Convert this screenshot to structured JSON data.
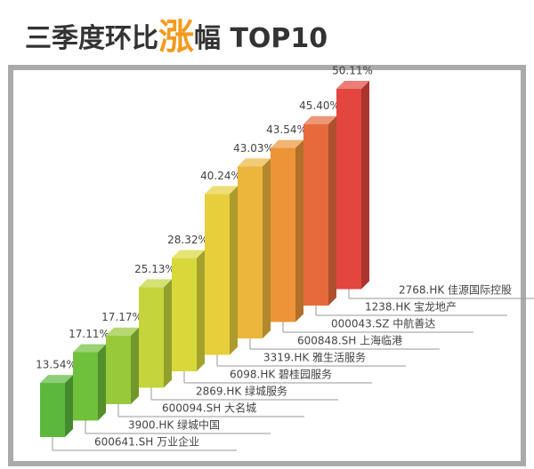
{
  "chart_data": {
    "type": "bar3d",
    "title": [
      "三季度环比",
      "涨",
      "幅 TOP10"
    ],
    "title_highlight": 1,
    "categories": [
      "600641.SH 万业企业",
      "3900.HK 绿城中国",
      "600094.SH 大名城",
      "2869.HK 绿城服务",
      "6098.HK 碧桂园服务",
      "3319.HK 雅生活服务",
      "600848.SH 上海临港",
      "000043.SZ 中航善达",
      "1238.HK 宝龙地产",
      "2768.HK 佳源国际控股"
    ],
    "values": [
      13.54,
      17.11,
      17.17,
      25.13,
      28.32,
      40.24,
      43.03,
      43.54,
      45.4,
      50.11
    ],
    "value_labels": [
      "13.54%",
      "17.11%",
      "17.17%",
      "25.13%",
      "28.32%",
      "40.24%",
      "43.03%",
      "43.54%",
      "45.40%",
      "50.11%"
    ],
    "colors": [
      "#5cb83c",
      "#6fc03a",
      "#98c93a",
      "#c4d43a",
      "#d9d83a",
      "#e7cf3c",
      "#ecb53c",
      "#ec9437",
      "#e76a3c",
      "#e2463f"
    ]
  }
}
